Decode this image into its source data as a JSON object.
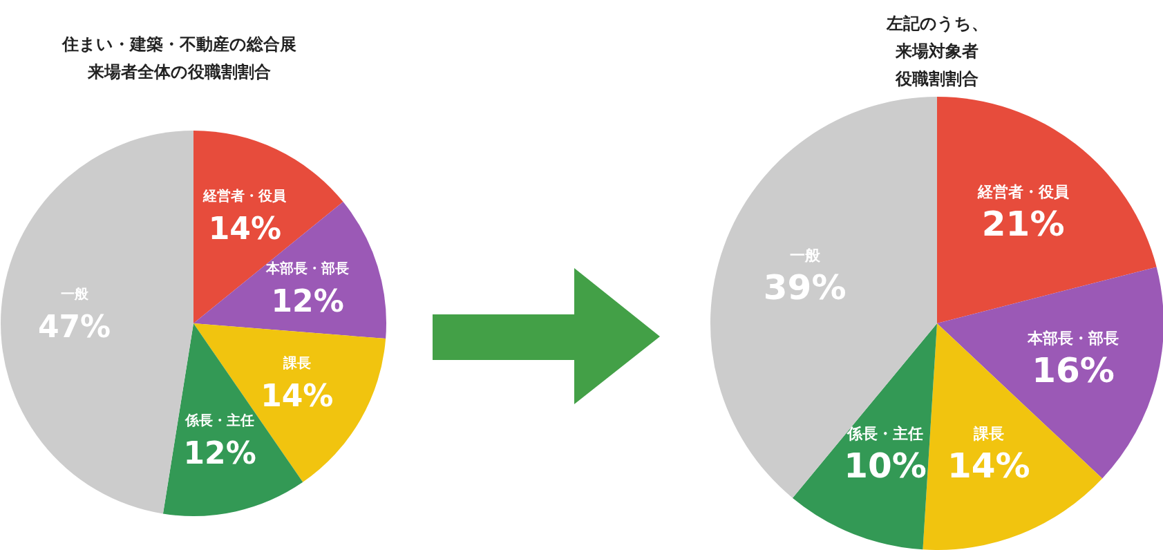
{
  "chart_data": [
    {
      "type": "pie",
      "title": "住まい・建築・不動産の総合展",
      "subtitle": "来場者全体の役職割割合",
      "categories": [
        "経営者・役員",
        "本部長・部長",
        "課長",
        "係長・主任",
        "一般"
      ],
      "values": [
        14,
        12,
        14,
        12,
        47
      ],
      "colors": [
        "#e74c3c",
        "#9b59b6",
        "#f1c40f",
        "#339955",
        "#cccccc"
      ],
      "value_labels": [
        "14%",
        "12%",
        "14%",
        "12%",
        "47%"
      ]
    },
    {
      "type": "pie",
      "title": "左記のうち、",
      "subtitle": "来場対象者役職割割合",
      "categories": [
        "経営者・役員",
        "本部長・部長",
        "課長",
        "係長・主任",
        "一般"
      ],
      "values": [
        21,
        16,
        14,
        10,
        39
      ],
      "colors": [
        "#e74c3c",
        "#9b59b6",
        "#f1c40f",
        "#339955",
        "#cccccc"
      ],
      "value_labels": [
        "21%",
        "16%",
        "14%",
        "10%",
        "39%"
      ]
    }
  ]
}
